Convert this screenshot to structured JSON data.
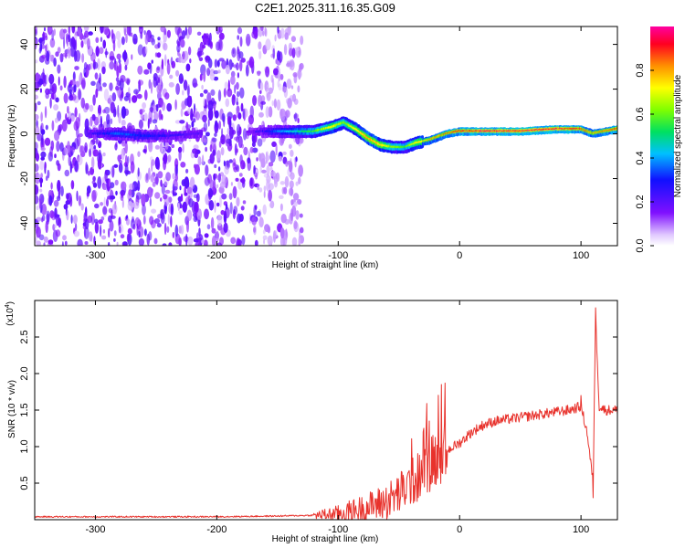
{
  "title": "C2E1.2025.311.16.35.G09",
  "colors": {
    "snr_line": "#e8322c",
    "spectral_low": "#7b10ff",
    "spectral_mid": "#00e070",
    "spectral_high": "#ff1030",
    "frame": "#000000"
  },
  "chart_data": [
    {
      "type": "heatmap",
      "title": "C2E1.2025.311.16.35.G09",
      "xlabel": "Height of straight line (km)",
      "ylabel": "Frequency (Hz)",
      "xlim": [
        -350,
        130
      ],
      "ylim": [
        -50,
        48
      ],
      "x_ticks": [
        -300,
        -200,
        -100,
        0,
        100
      ],
      "x_tick_labels": [
        "-300",
        "-200",
        "-100",
        "0",
        "100"
      ],
      "y_ticks": [
        -40,
        -20,
        0,
        20,
        40
      ],
      "y_tick_labels": [
        "-40",
        "-20",
        "0",
        "20",
        "40"
      ],
      "colorbar": {
        "label": "Normalized spectral amplitude",
        "range": [
          0,
          1
        ],
        "ticks": [
          0.0,
          0.2,
          0.4,
          0.6,
          0.8
        ],
        "tick_labels": [
          "0.0",
          "0.2",
          "0.4",
          "0.6",
          "0.8"
        ]
      },
      "noise_region": {
        "x_range": [
          -350,
          -130
        ],
        "density": "high"
      },
      "frequency_track": {
        "x": [
          -305,
          -280,
          -260,
          -240,
          -215,
          -170,
          -150,
          -120,
          -105,
          -95,
          -85,
          -75,
          -65,
          -55,
          -45,
          -35,
          -25,
          -10,
          0,
          20,
          50,
          80,
          100,
          110,
          130
        ],
        "freq_hz": [
          0,
          0,
          -1,
          -1,
          0,
          1,
          1,
          1,
          3,
          5,
          2,
          -2,
          -5,
          -6,
          -6,
          -4,
          -3,
          0,
          1,
          1,
          1,
          2,
          2,
          0,
          2
        ],
        "amplitude": [
          0.2,
          0.35,
          0.3,
          0.25,
          0.2,
          0.15,
          0.35,
          0.55,
          0.7,
          0.6,
          0.7,
          0.8,
          0.75,
          0.6,
          0.55,
          0.7,
          0.8,
          0.85,
          0.9,
          0.95,
          0.95,
          0.95,
          0.9,
          0.8,
          0.9
        ]
      }
    },
    {
      "type": "line",
      "xlabel": "Height of straight line (km)",
      "ylabel": "SNR (10 * v/v)",
      "y_scale_label": "(x10",
      "y_scale_exponent": "4",
      "y_scale_close": ")",
      "xlim": [
        -350,
        130
      ],
      "ylim": [
        0,
        3.0
      ],
      "x_ticks": [
        -300,
        -200,
        -100,
        0,
        100
      ],
      "x_tick_labels": [
        "-300",
        "-200",
        "-100",
        "0",
        "100"
      ],
      "y_ticks": [
        0.5,
        1.0,
        1.5,
        2.0,
        2.5
      ],
      "y_tick_labels": [
        "0.5",
        "1.0",
        "1.5",
        "2.0",
        "2.5"
      ],
      "series": [
        {
          "x": [
            -350,
            -300,
            -250,
            -200,
            -150,
            -120,
            -100,
            -80,
            -60,
            -50,
            -40,
            -30,
            -20,
            -15,
            -10,
            0,
            10,
            20,
            30,
            50,
            70,
            90,
            100,
            105,
            110,
            112,
            115,
            120,
            130
          ],
          "y": [
            0.04,
            0.04,
            0.04,
            0.04,
            0.05,
            0.06,
            0.08,
            0.15,
            0.25,
            0.35,
            0.5,
            0.65,
            0.85,
            0.9,
            0.95,
            1.05,
            1.2,
            1.3,
            1.35,
            1.4,
            1.45,
            1.5,
            1.55,
            1.2,
            0.5,
            2.8,
            1.55,
            1.5,
            1.5
          ],
          "spikes": [
            {
              "x": -15,
              "y": 1.85
            },
            {
              "x": -25,
              "y": 1.35
            },
            {
              "x": -30,
              "y": 1.2
            },
            {
              "x": 100,
              "y": 1.7
            },
            {
              "x": 110,
              "y": 2.7
            },
            {
              "x": 112,
              "y": 2.9
            },
            {
              "x": 110,
              "y": 0.3
            }
          ]
        }
      ]
    }
  ]
}
